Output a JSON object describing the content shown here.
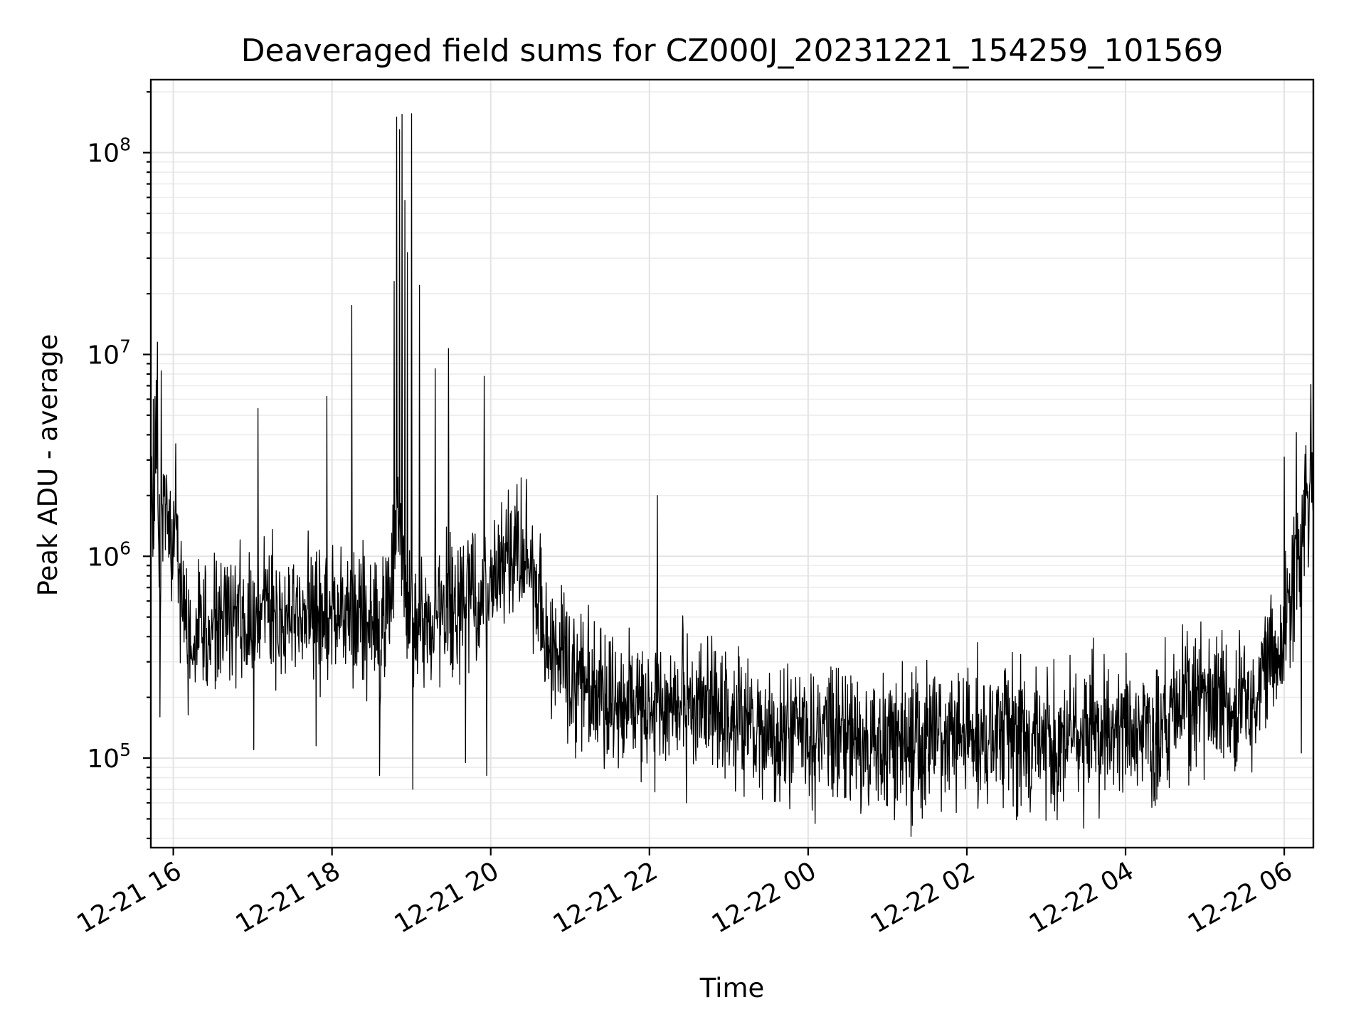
{
  "chart_data": {
    "type": "line",
    "title": "Deaveraged field sums for CZ000J_20231221_154259_101569",
    "xlabel": "Time",
    "ylabel": "Peak ADU - average",
    "yscale": "log",
    "xlim": [
      "2023-12-21 15:43",
      "2023-12-22 06:22"
    ],
    "ylim": [
      36000,
      230000000
    ],
    "grid": true,
    "line_color": "#000000",
    "x_ticks": [
      {
        "value": "2023-12-21 16:00",
        "label": "12-21 16"
      },
      {
        "value": "2023-12-21 18:00",
        "label": "12-21 18"
      },
      {
        "value": "2023-12-21 20:00",
        "label": "12-21 20"
      },
      {
        "value": "2023-12-21 22:00",
        "label": "12-21 22"
      },
      {
        "value": "2023-12-22 00:00",
        "label": "12-22 00"
      },
      {
        "value": "2023-12-22 02:00",
        "label": "12-22 02"
      },
      {
        "value": "2023-12-22 04:00",
        "label": "12-22 04"
      },
      {
        "value": "2023-12-22 06:00",
        "label": "12-22 06"
      }
    ],
    "y_ticks": [
      {
        "value": 100000,
        "base": "10",
        "exp": "5"
      },
      {
        "value": 1000000,
        "base": "10",
        "exp": "6"
      },
      {
        "value": 10000000,
        "base": "10",
        "exp": "7"
      },
      {
        "value": 100000000,
        "base": "10",
        "exp": "8"
      }
    ],
    "series": [
      {
        "points": [
          [
            "2023-12-21 15:43",
            1500000
          ],
          [
            "2023-12-21 15:47",
            3200000
          ],
          [
            "2023-12-21 15:50",
            1100000
          ],
          [
            "2023-12-21 15:54",
            2200000
          ],
          [
            "2023-12-21 15:58",
            900000
          ],
          [
            "2023-12-21 16:02",
            1800000
          ],
          [
            "2023-12-21 16:06",
            600000
          ],
          [
            "2023-12-21 16:10",
            420000
          ],
          [
            "2023-12-21 16:15",
            350000
          ],
          [
            "2023-12-21 16:20",
            480000
          ],
          [
            "2023-12-21 16:25",
            380000
          ],
          [
            "2023-12-21 16:30",
            520000
          ],
          [
            "2023-12-21 16:40",
            450000
          ],
          [
            "2023-12-21 16:50",
            500000
          ],
          [
            "2023-12-21 17:00",
            420000
          ],
          [
            "2023-12-21 17:10",
            550000
          ],
          [
            "2023-12-21 17:20",
            500000
          ],
          [
            "2023-12-21 17:30",
            600000
          ],
          [
            "2023-12-21 17:40",
            520000
          ],
          [
            "2023-12-21 17:50",
            480000
          ],
          [
            "2023-12-21 18:00",
            550000
          ],
          [
            "2023-12-21 18:10",
            500000
          ],
          [
            "2023-12-21 18:20",
            540000
          ],
          [
            "2023-12-21 18:30",
            480000
          ],
          [
            "2023-12-21 18:40",
            450000
          ],
          [
            "2023-12-21 18:45",
            700000
          ],
          [
            "2023-12-21 18:50",
            2000000
          ],
          [
            "2023-12-21 18:55",
            600000
          ],
          [
            "2023-12-21 19:00",
            500000
          ],
          [
            "2023-12-21 19:10",
            450000
          ],
          [
            "2023-12-21 19:20",
            500000
          ],
          [
            "2023-12-21 19:30",
            550000
          ],
          [
            "2023-12-21 19:40",
            620000
          ],
          [
            "2023-12-21 19:50",
            580000
          ],
          [
            "2023-12-21 20:00",
            750000
          ],
          [
            "2023-12-21 20:10",
            1000000
          ],
          [
            "2023-12-21 20:20",
            1100000
          ],
          [
            "2023-12-21 20:30",
            800000
          ],
          [
            "2023-12-21 20:40",
            420000
          ],
          [
            "2023-12-21 20:50",
            320000
          ],
          [
            "2023-12-21 21:00",
            260000
          ],
          [
            "2023-12-21 21:20",
            200000
          ],
          [
            "2023-12-21 21:40",
            190000
          ],
          [
            "2023-12-21 22:00",
            200000
          ],
          [
            "2023-12-21 22:20",
            190000
          ],
          [
            "2023-12-21 22:40",
            170000
          ],
          [
            "2023-12-21 23:00",
            160000
          ],
          [
            "2023-12-21 23:20",
            150000
          ],
          [
            "2023-12-21 23:40",
            140000
          ],
          [
            "2023-12-22 00:00",
            135000
          ],
          [
            "2023-12-22 00:20",
            140000
          ],
          [
            "2023-12-22 00:40",
            130000
          ],
          [
            "2023-12-22 01:00",
            115000
          ],
          [
            "2023-12-22 01:20",
            120000
          ],
          [
            "2023-12-22 01:40",
            130000
          ],
          [
            "2023-12-22 02:00",
            120000
          ],
          [
            "2023-12-22 02:20",
            135000
          ],
          [
            "2023-12-22 02:40",
            120000
          ],
          [
            "2023-12-22 03:00",
            110000
          ],
          [
            "2023-12-22 03:20",
            125000
          ],
          [
            "2023-12-22 03:40",
            140000
          ],
          [
            "2023-12-22 04:00",
            140000
          ],
          [
            "2023-12-22 04:20",
            125000
          ],
          [
            "2023-12-22 04:40",
            180000
          ],
          [
            "2023-12-22 05:00",
            200000
          ],
          [
            "2023-12-22 05:20",
            190000
          ],
          [
            "2023-12-22 05:40",
            220000
          ],
          [
            "2023-12-22 05:55",
            300000
          ],
          [
            "2023-12-22 06:05",
            600000
          ],
          [
            "2023-12-22 06:12",
            1200000
          ],
          [
            "2023-12-22 06:18",
            1600000
          ],
          [
            "2023-12-22 06:22",
            2000000
          ]
        ],
        "peaks": [
          [
            "2023-12-21 15:45",
            6000000
          ],
          [
            "2023-12-21 15:48",
            11500000
          ],
          [
            "2023-12-21 15:51",
            8300000
          ],
          [
            "2023-12-21 17:04",
            5400000
          ],
          [
            "2023-12-21 17:56",
            6200000
          ],
          [
            "2023-12-21 18:15",
            17500000
          ],
          [
            "2023-12-21 18:47",
            23000000
          ],
          [
            "2023-12-21 18:49",
            150000000
          ],
          [
            "2023-12-21 18:51",
            130000000
          ],
          [
            "2023-12-21 18:53",
            155000000
          ],
          [
            "2023-12-21 18:55",
            58000000
          ],
          [
            "2023-12-21 18:57",
            32000000
          ],
          [
            "2023-12-21 19:00",
            156000000
          ],
          [
            "2023-12-21 19:06",
            22000000
          ],
          [
            "2023-12-21 19:18",
            8500000
          ],
          [
            "2023-12-21 19:28",
            10700000
          ],
          [
            "2023-12-21 19:55",
            7800000
          ],
          [
            "2023-12-21 22:06",
            2000000
          ],
          [
            "2023-12-22 06:00",
            3100000
          ],
          [
            "2023-12-22 06:09",
            4100000
          ],
          [
            "2023-12-22 06:20",
            7100000
          ]
        ],
        "dips": [
          [
            "2023-12-21 15:50",
            160000
          ],
          [
            "2023-12-21 17:01",
            110000
          ],
          [
            "2023-12-21 17:48",
            115000
          ],
          [
            "2023-12-21 18:36",
            82000
          ],
          [
            "2023-12-21 19:01",
            70000
          ],
          [
            "2023-12-21 19:41",
            95000
          ],
          [
            "2023-12-21 19:57",
            82000
          ],
          [
            "2023-12-21 22:04",
            68000
          ],
          [
            "2023-12-21 22:28",
            60000
          ],
          [
            "2023-12-21 23:46",
            56000
          ],
          [
            "2023-12-22 01:00",
            58000
          ],
          [
            "2023-12-22 02:48",
            54000
          ],
          [
            "2023-12-22 04:20",
            57000
          ],
          [
            "2023-12-22 06:13",
            106000
          ]
        ]
      }
    ]
  }
}
